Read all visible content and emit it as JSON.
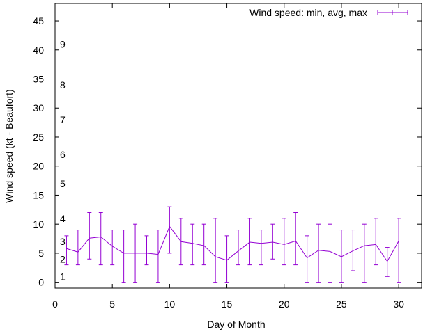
{
  "chart_data": {
    "type": "line",
    "title": "",
    "xlabel": "Day of Month",
    "ylabel": "Wind speed (kt - Beaufort)",
    "xlim": [
      0,
      32
    ],
    "ylim": [
      -1,
      48
    ],
    "xticks": [
      0,
      5,
      10,
      15,
      20,
      25,
      30
    ],
    "yticks": [
      0,
      5,
      10,
      15,
      20,
      25,
      30,
      35,
      40,
      45
    ],
    "grid": false,
    "legend": "top-right",
    "series": [
      {
        "name": "Wind speed: min, avg, max",
        "color": "#9400d3",
        "x": [
          1,
          2,
          3,
          4,
          5,
          6,
          7,
          8,
          9,
          10,
          11,
          12,
          13,
          14,
          15,
          16,
          17,
          18,
          19,
          20,
          21,
          22,
          23,
          24,
          25,
          26,
          27,
          28,
          29,
          30
        ],
        "avg": [
          5.8,
          5.2,
          7.6,
          7.8,
          6.2,
          5.0,
          5.0,
          5.0,
          4.8,
          9.6,
          7.0,
          6.7,
          6.3,
          4.4,
          3.8,
          5.4,
          6.9,
          6.7,
          6.9,
          6.5,
          7.1,
          4.2,
          5.5,
          5.3,
          4.4,
          5.4,
          6.3,
          6.5,
          3.6,
          7.1
        ],
        "min": [
          3,
          3,
          4,
          3,
          3,
          0,
          0,
          3,
          0,
          5,
          3,
          3,
          3,
          0,
          0,
          3,
          3,
          3,
          4,
          3,
          3,
          0,
          0,
          0,
          0,
          2,
          0,
          3,
          1,
          0
        ],
        "max": [
          8,
          9,
          12,
          12,
          9,
          9,
          10,
          8,
          9,
          13,
          11,
          10,
          10,
          11,
          8,
          9,
          11,
          9,
          10,
          11,
          12,
          8,
          10,
          10,
          9,
          9,
          10,
          11,
          6,
          11
        ]
      }
    ],
    "beaufort_labels": [
      {
        "label": "1",
        "kt": 1
      },
      {
        "label": "2",
        "kt": 4
      },
      {
        "label": "3",
        "kt": 7
      },
      {
        "label": "4",
        "kt": 11
      },
      {
        "label": "5",
        "kt": 17
      },
      {
        "label": "6",
        "kt": 22
      },
      {
        "label": "7",
        "kt": 28
      },
      {
        "label": "8",
        "kt": 34
      },
      {
        "label": "9",
        "kt": 41
      }
    ]
  }
}
